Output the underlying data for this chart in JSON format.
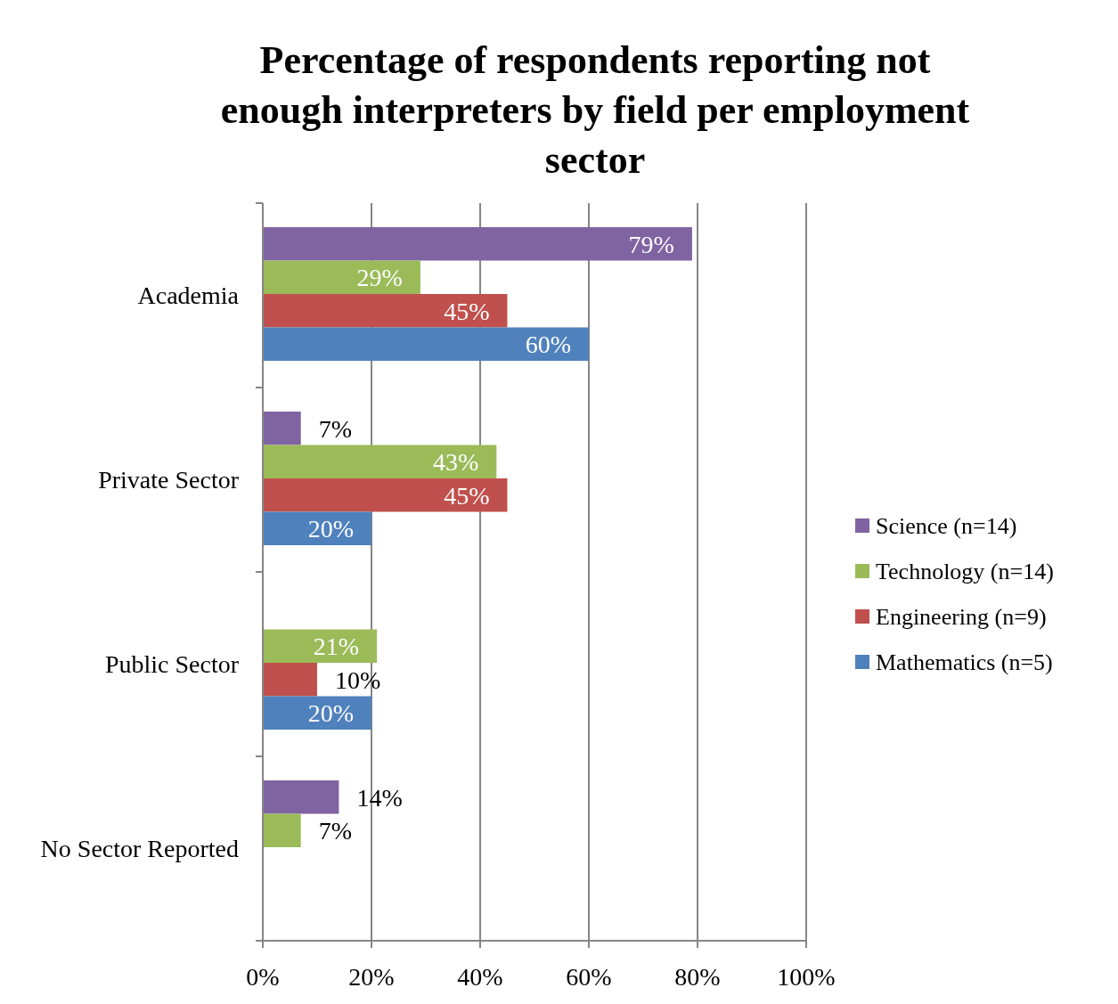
{
  "chart_data": {
    "type": "bar",
    "orientation": "horizontal",
    "title": "Percentage of respondents reporting not enough interpreters by field per employment sector",
    "categories": [
      "Academia",
      "Private Sector",
      "Public Sector",
      "No Sector Reported"
    ],
    "series": [
      {
        "name": "Science (n=14)",
        "color": "#8064a2",
        "values": [
          79,
          7,
          null,
          14
        ],
        "value_labels": [
          "79%",
          "7%",
          null,
          "14%"
        ]
      },
      {
        "name": "Technology (n=14)",
        "color": "#9bbb59",
        "values": [
          29,
          43,
          21,
          7
        ],
        "value_labels": [
          "29%",
          "43%",
          "21%",
          "7%"
        ]
      },
      {
        "name": "Engineering (n=9)",
        "color": "#c0504d",
        "values": [
          45,
          45,
          10,
          null
        ],
        "value_labels": [
          "45%",
          "45%",
          "10%",
          null
        ]
      },
      {
        "name": "Mathematics (n=5)",
        "color": "#4f81bd",
        "values": [
          60,
          20,
          20,
          null
        ],
        "value_labels": [
          "60%",
          "20%",
          "20%",
          null
        ]
      }
    ],
    "xlim": [
      0,
      100
    ],
    "xticks": [
      {
        "value": 0,
        "label": "0%"
      },
      {
        "value": 20,
        "label": "20%"
      },
      {
        "value": 40,
        "label": "40%"
      },
      {
        "value": 60,
        "label": "60%"
      },
      {
        "value": 80,
        "label": "80%"
      },
      {
        "value": 100,
        "label": "100%"
      }
    ],
    "grid": "x",
    "legend": "right"
  }
}
